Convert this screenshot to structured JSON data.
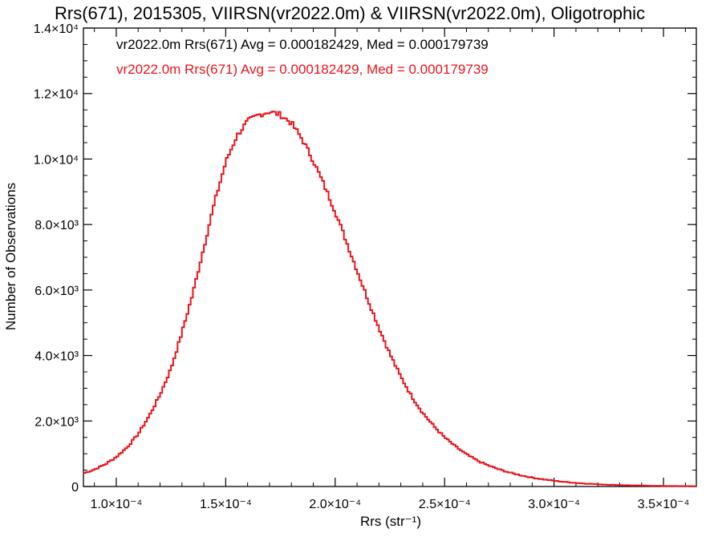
{
  "chart_data": {
    "type": "histogram-step",
    "title": "Rrs(671), 2015305, VIIRSN(vr2022.0m) & VIIRSN(vr2022.0m), Oligotrophic",
    "xlabel": "Rrs (str⁻¹)",
    "ylabel": "Number of Observations",
    "xlim": [
      8.5e-05,
      0.000365
    ],
    "ylim": [
      0,
      14000
    ],
    "x_ticks": [
      {
        "value": 0.0001,
        "label": "1.0×10⁻⁴"
      },
      {
        "value": 0.00015,
        "label": "1.5×10⁻⁴"
      },
      {
        "value": 0.0002,
        "label": "2.0×10⁻⁴"
      },
      {
        "value": 0.00025,
        "label": "2.5×10⁻⁴"
      },
      {
        "value": 0.0003,
        "label": "3.0×10⁻⁴"
      },
      {
        "value": 0.00035,
        "label": "3.5×10⁻⁴"
      }
    ],
    "y_ticks": [
      {
        "value": 0,
        "label": "0"
      },
      {
        "value": 2000,
        "label": "2.0×10³"
      },
      {
        "value": 4000,
        "label": "4.0×10³"
      },
      {
        "value": 6000,
        "label": "6.0×10³"
      },
      {
        "value": 8000,
        "label": "8.0×10³"
      },
      {
        "value": 10000,
        "label": "1.0×10⁴"
      },
      {
        "value": 12000,
        "label": "1.2×10⁴"
      },
      {
        "value": 14000,
        "label": "1.4×10⁴"
      }
    ],
    "annotations": [
      {
        "text": "vr2022.0m Rrs(671) Avg = 0.000182429, Med = 0.000179739",
        "color": "#000000"
      },
      {
        "text": "vr2022.0m Rrs(671) Avg = 0.000182429, Med = 0.000179739",
        "color": "#e8141c"
      }
    ],
    "series": [
      {
        "color": "#e8141c",
        "bin_width": 1e-06,
        "points": [
          [
            8.5e-05,
            400
          ],
          [
            9e-05,
            520
          ],
          [
            9.5e-05,
            680
          ],
          [
            0.0001,
            900
          ],
          [
            0.000105,
            1200
          ],
          [
            0.00011,
            1600
          ],
          [
            0.000115,
            2150
          ],
          [
            0.00012,
            2800
          ],
          [
            0.000125,
            3600
          ],
          [
            0.00013,
            4700
          ],
          [
            0.000135,
            5900
          ],
          [
            0.00014,
            7300
          ],
          [
            0.000145,
            8700
          ],
          [
            0.00015,
            9900
          ],
          [
            0.000155,
            10700
          ],
          [
            0.00016,
            11150
          ],
          [
            0.000165,
            11350
          ],
          [
            0.00017,
            11450
          ],
          [
            0.000175,
            11350
          ],
          [
            0.00018,
            11100
          ],
          [
            0.000185,
            10600
          ],
          [
            0.00019,
            9950
          ],
          [
            0.000195,
            9200
          ],
          [
            0.0002,
            8400
          ],
          [
            0.000205,
            7500
          ],
          [
            0.00021,
            6600
          ],
          [
            0.000215,
            5700
          ],
          [
            0.00022,
            4850
          ],
          [
            0.000225,
            4050
          ],
          [
            0.00023,
            3350
          ],
          [
            0.000235,
            2750
          ],
          [
            0.00024,
            2250
          ],
          [
            0.000245,
            1850
          ],
          [
            0.00025,
            1500
          ],
          [
            0.000255,
            1220
          ],
          [
            0.00026,
            980
          ],
          [
            0.000265,
            790
          ],
          [
            0.00027,
            640
          ],
          [
            0.000275,
            520
          ],
          [
            0.00028,
            420
          ],
          [
            0.000285,
            340
          ],
          [
            0.00029,
            270
          ],
          [
            0.000295,
            220
          ],
          [
            0.0003,
            175
          ],
          [
            0.000305,
            140
          ],
          [
            0.00031,
            110
          ],
          [
            0.000315,
            88
          ],
          [
            0.00032,
            70
          ],
          [
            0.000325,
            55
          ],
          [
            0.00033,
            44
          ],
          [
            0.000335,
            35
          ],
          [
            0.00034,
            28
          ],
          [
            0.000345,
            22
          ],
          [
            0.00035,
            17
          ],
          [
            0.000355,
            13
          ],
          [
            0.00036,
            10
          ],
          [
            0.000365,
            8
          ]
        ]
      }
    ],
    "grid": false
  }
}
